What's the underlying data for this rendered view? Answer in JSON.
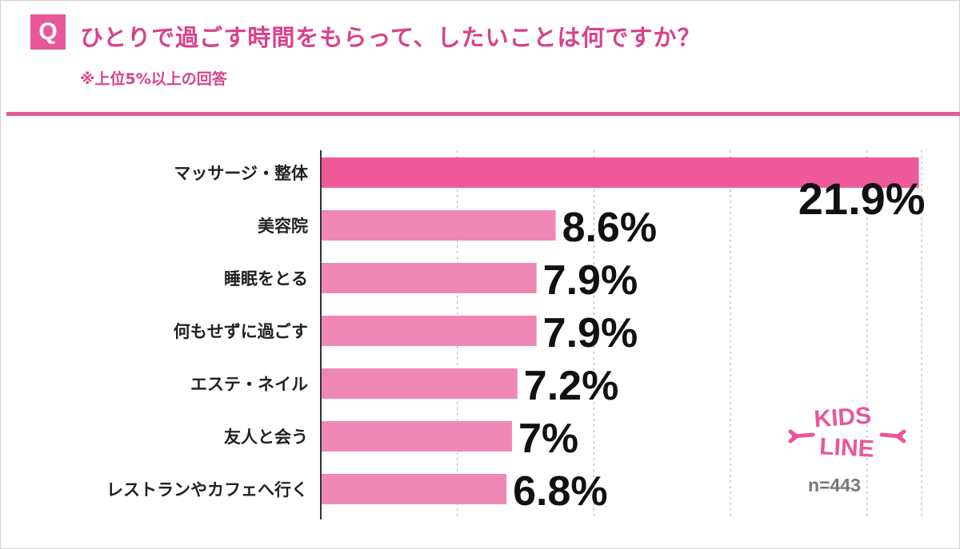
{
  "header": {
    "q_badge": "Q",
    "title": "ひとりで過ごす時間をもらって、したいことは何ですか？",
    "subtitle": "※上位5%以上の回答"
  },
  "chart_data": {
    "type": "bar",
    "orientation": "horizontal",
    "categories": [
      "マッサージ・整体",
      "美容院",
      "睡眠をとる",
      "何もせずに過ごす",
      "エステ・ネイル",
      "友人と会う",
      "レストランやカフェへ行く"
    ],
    "values": [
      21.9,
      8.6,
      7.9,
      7.9,
      7.2,
      7,
      6.8
    ],
    "value_labels": [
      "21.9%",
      "8.6%",
      "7.9%",
      "7.9%",
      "7.2%",
      "7%",
      "6.8%"
    ],
    "unit": "%",
    "xlim": [
      0,
      22
    ],
    "grid": "vertical dashed",
    "colors": {
      "highlight": "#ef5a9b",
      "bar": "#f088b6",
      "accent": "#e8579a"
    }
  },
  "footer": {
    "logo_text": [
      "KIDS",
      "LINE"
    ],
    "sample_size": "n=443"
  }
}
